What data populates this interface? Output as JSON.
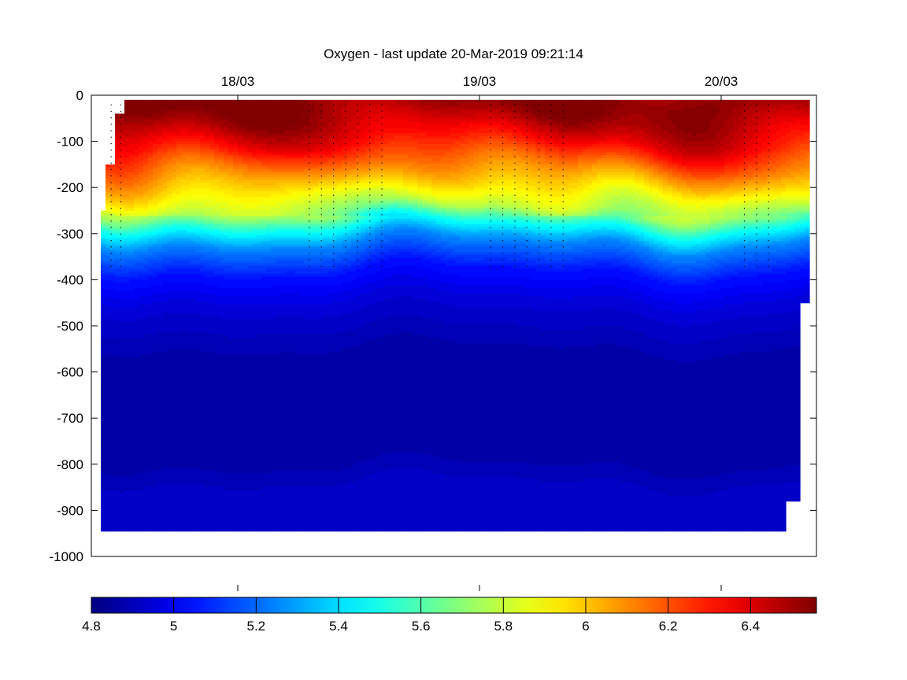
{
  "chart_data": {
    "type": "heatmap",
    "title": "Oxygen - last update 20-Mar-2019 09:21:14",
    "xlabel": "",
    "ylabel": "",
    "x_axis": {
      "position": "top",
      "range_days": [
        "17/03 ~09:00",
        "20/03 ~06:00"
      ],
      "ticks": [
        {
          "label": "18/03",
          "value": "2019-03-18"
        },
        {
          "label": "19/03",
          "value": "2019-03-19"
        },
        {
          "label": "20/03",
          "value": "2019-03-20"
        }
      ]
    },
    "y_axis": {
      "ylim": [
        -1000,
        0
      ],
      "ticks": [
        0,
        -100,
        -200,
        -300,
        -400,
        -500,
        -600,
        -700,
        -800,
        -900,
        -1000
      ]
    },
    "colorbar": {
      "orientation": "horizontal",
      "colormap": "jet",
      "range": [
        4.8,
        6.56
      ],
      "ticks": [
        4.8,
        5,
        5.2,
        5.4,
        5.6,
        5.8,
        6,
        6.2,
        6.4
      ]
    },
    "grid": false,
    "depth_profile": {
      "depth": [
        -10,
        -50,
        -100,
        -150,
        -200,
        -250,
        -280,
        -320,
        -380,
        -450,
        -550,
        -700,
        -800,
        -850,
        -950
      ],
      "oxygen": [
        6.55,
        6.48,
        6.35,
        6.15,
        5.95,
        5.75,
        5.5,
        5.25,
        5.05,
        4.95,
        4.88,
        4.86,
        4.88,
        4.92,
        4.93
      ]
    },
    "coverage": {
      "x_start_day": 17.3,
      "x_end_day": 20.35,
      "min_depth": -945,
      "note_shallow_gap_start": "surface data starts ~-10"
    }
  }
}
